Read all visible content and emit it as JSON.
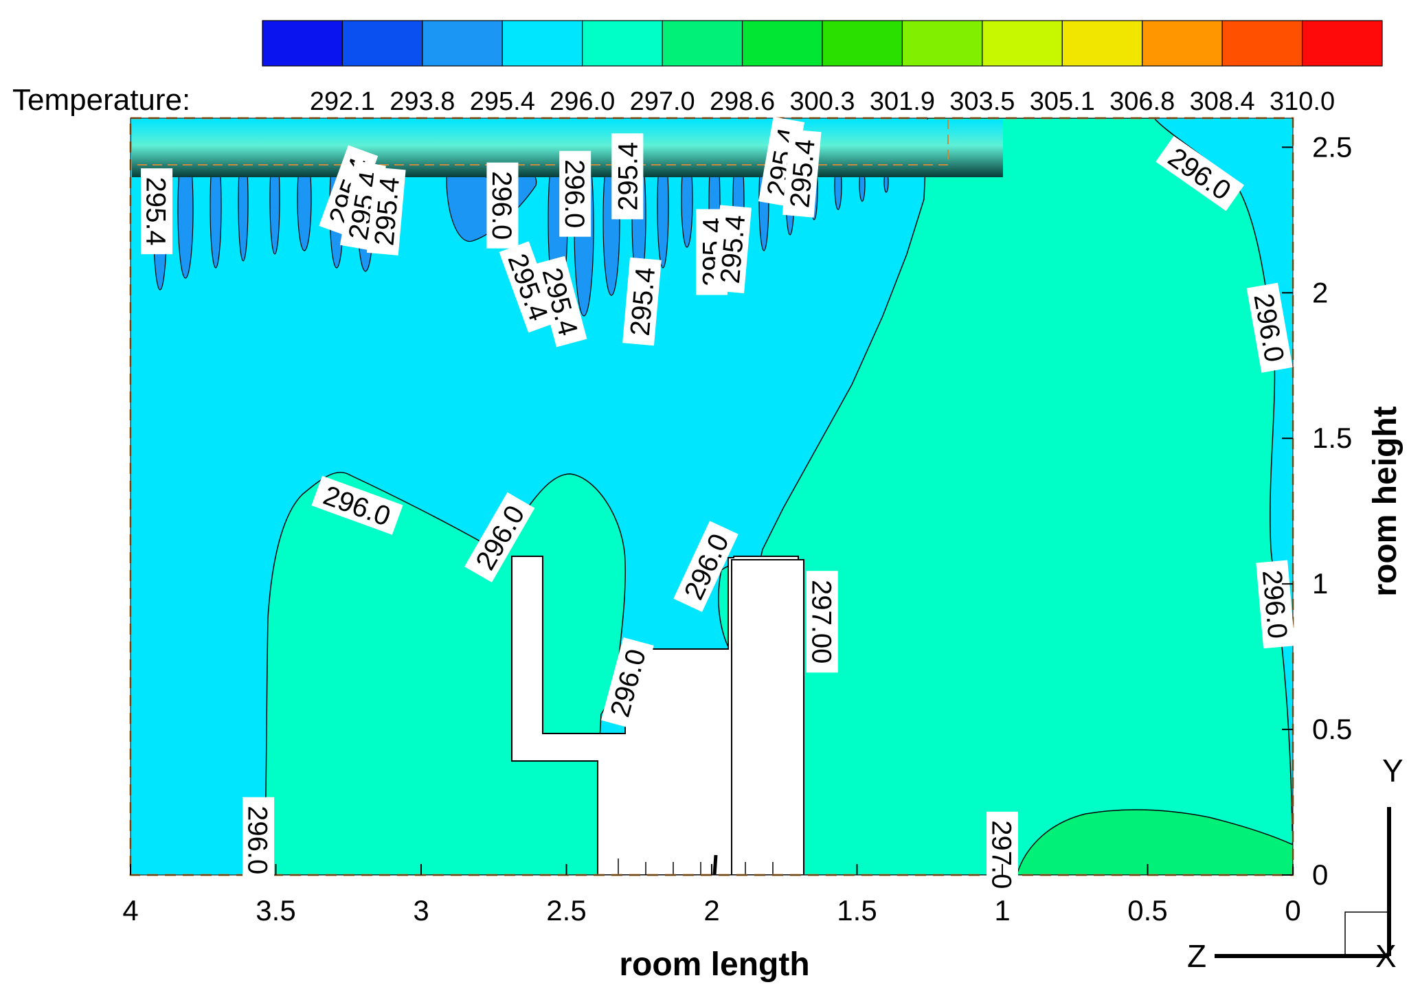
{
  "chart_data": {
    "type": "heatmap",
    "title": "",
    "xlabel": "room length",
    "ylabel": "room height",
    "xlim": [
      4,
      0
    ],
    "ylim": [
      0,
      2.6
    ],
    "x_ticks": [
      "4",
      "3.5",
      "3",
      "2.5",
      "2",
      "1.5",
      "1",
      "0.5",
      "0"
    ],
    "y_ticks": [
      "0",
      "0.5",
      "1",
      "1.5",
      "2",
      "2.5"
    ],
    "colorbar": {
      "title": "Temperature:",
      "levels": [
        "292.1",
        "293.8",
        "295.4",
        "296.0",
        "297.0",
        "298.6",
        "300.3",
        "301.9",
        "303.5",
        "305.1",
        "306.8",
        "308.4",
        "310.0"
      ],
      "colors": [
        "#0a14ee",
        "#0a50f0",
        "#1c96f4",
        "#00e6ff",
        "#00ffc6",
        "#00f078",
        "#00e632",
        "#2ae000",
        "#80f000",
        "#c8f800",
        "#f0e600",
        "#ff9600",
        "#ff5000",
        "#ff0a0a"
      ]
    },
    "contour_labels": [
      {
        "text": "295.4",
        "x": 3.91,
        "y": 2.28
      },
      {
        "text": "295.4",
        "x": 3.25,
        "y": 2.35
      },
      {
        "text": "295.4",
        "x": 3.2,
        "y": 2.3
      },
      {
        "text": "295.4",
        "x": 3.12,
        "y": 2.28
      },
      {
        "text": "296.0",
        "x": 2.72,
        "y": 2.3
      },
      {
        "text": "295.4",
        "x": 2.63,
        "y": 2.02
      },
      {
        "text": "295.4",
        "x": 2.52,
        "y": 1.97
      },
      {
        "text": "296.0",
        "x": 2.47,
        "y": 2.34
      },
      {
        "text": "295.4",
        "x": 2.29,
        "y": 2.4
      },
      {
        "text": "295.4",
        "x": 2.24,
        "y": 1.97
      },
      {
        "text": "295.4",
        "x": 2.0,
        "y": 2.14
      },
      {
        "text": "295.4",
        "x": 1.93,
        "y": 2.15
      },
      {
        "text": "295.4",
        "x": 1.76,
        "y": 2.45
      },
      {
        "text": "295.4",
        "x": 1.69,
        "y": 2.41
      },
      {
        "text": "296.0",
        "x": 0.32,
        "y": 2.41
      },
      {
        "text": "296.0",
        "x": 0.08,
        "y": 1.88
      },
      {
        "text": "296.0",
        "x": 0.06,
        "y": 0.93
      },
      {
        "text": "296.0",
        "x": 3.22,
        "y": 1.27
      },
      {
        "text": "296.0",
        "x": 2.73,
        "y": 1.16
      },
      {
        "text": "296.0",
        "x": 2.02,
        "y": 1.06
      },
      {
        "text": "296.0",
        "x": 2.29,
        "y": 0.66
      },
      {
        "text": "297.00",
        "x": 1.62,
        "y": 0.87
      },
      {
        "text": "296.0",
        "x": 3.56,
        "y": 0.12
      },
      {
        "text": "297.0",
        "x": 1.0,
        "y": 0.07
      }
    ],
    "axis_triad": {
      "y": "Y",
      "z": "Z",
      "x": "X"
    }
  }
}
